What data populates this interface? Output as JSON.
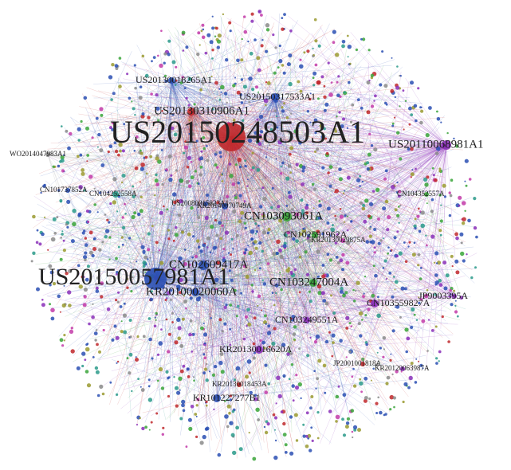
{
  "graph": {
    "palette": {
      "red": "#c0282b",
      "blue": "#2a4fb3",
      "green": "#3aa53a",
      "purple": "#8a2fb8",
      "magenta": "#c23aa8",
      "teal": "#2a9a8a",
      "gray": "#8a8a8a",
      "olive": "#9a9a30"
    },
    "hubs": [
      {
        "id": "US20150248503A1",
        "color": "red"
      },
      {
        "id": "US20150057981A1",
        "color": "blue"
      },
      {
        "id": "US20110068981A1",
        "color": "purple"
      },
      {
        "id": "US20130310906A1",
        "color": "red"
      },
      {
        "id": "US20150317533A1",
        "color": "blue"
      },
      {
        "id": "US20130018265A1",
        "color": "blue"
      },
      {
        "id": "CN102609417A",
        "color": "blue"
      },
      {
        "id": "KR20100020060A",
        "color": "blue"
      },
      {
        "id": "CN103093061A",
        "color": "green"
      },
      {
        "id": "CN103247004A",
        "color": "green"
      },
      {
        "id": "CN102591962A",
        "color": "green"
      },
      {
        "id": "KR20130016620A",
        "color": "purple"
      },
      {
        "id": "CN103249551A",
        "color": "purple"
      },
      {
        "id": "CN103559827A",
        "color": "purple"
      },
      {
        "id": "JP9003395A",
        "color": "purple"
      },
      {
        "id": "KR101227277B1",
        "color": "blue"
      },
      {
        "id": "CN104252558A",
        "color": "teal"
      },
      {
        "id": "WO2014047983A1",
        "color": "gray"
      },
      {
        "id": "KR20140070749A",
        "color": "blue"
      },
      {
        "id": "KR20130018453A",
        "color": "red"
      },
      {
        "id": "US20080015823A1",
        "color": "blue"
      },
      {
        "id": "CN101737852A",
        "color": "blue"
      },
      {
        "id": "JP2001001818A",
        "color": "red"
      },
      {
        "id": "KR20120063987A",
        "color": "purple"
      },
      {
        "id": "CN104352557A",
        "color": "green"
      },
      {
        "id": "KR20130029875A",
        "color": "magenta"
      }
    ]
  }
}
